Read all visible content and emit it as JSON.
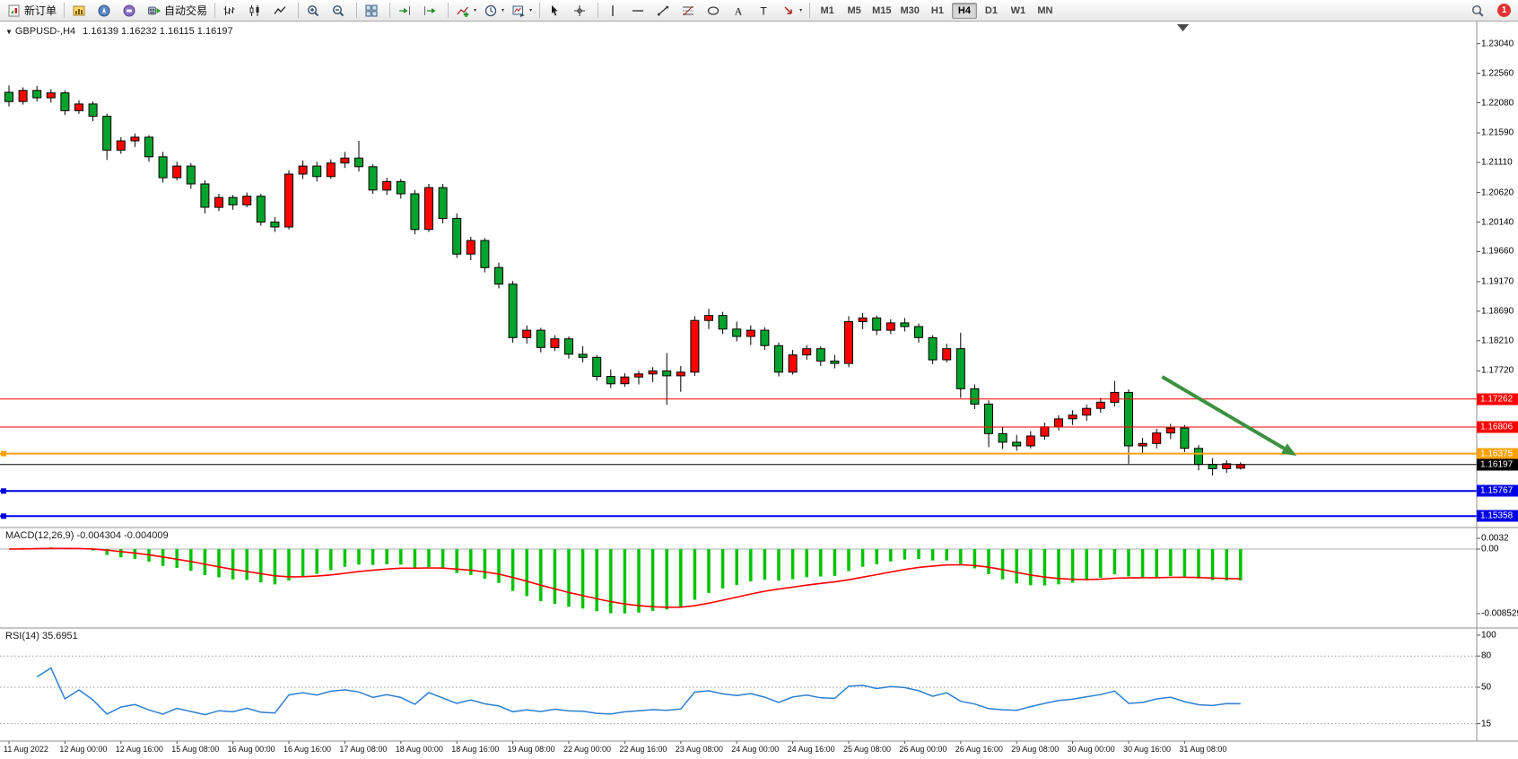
{
  "toolbar": {
    "new_order_label": "新订单",
    "autotrading_label": "自动交易",
    "notification_count": "1",
    "timeframes": [
      "M1",
      "M5",
      "M15",
      "M30",
      "H1",
      "H4",
      "D1",
      "W1",
      "MN"
    ],
    "active_timeframe": "H4",
    "groups": [
      {
        "items": [
          {
            "name": "new-order-button",
            "icon": "new-order",
            "label_key": "new_order_label"
          }
        ]
      },
      {
        "items": [
          {
            "name": "market-watch-button",
            "icon": "market-watch"
          },
          {
            "name": "navigator-button",
            "icon": "navigator"
          },
          {
            "name": "terminal-button",
            "icon": "terminal"
          },
          {
            "name": "autotrading-button",
            "icon": "autotrading",
            "label_key": "autotrading_label"
          }
        ]
      },
      {
        "items": [
          {
            "name": "bar-chart-button",
            "icon": "bar-chart"
          },
          {
            "name": "candlestick-chart-button",
            "icon": "candlestick-chart"
          },
          {
            "name": "line-chart-button",
            "icon": "line-chart"
          }
        ]
      },
      {
        "items": [
          {
            "name": "zoom-in-button",
            "icon": "zoom-in"
          },
          {
            "name": "zoom-out-button",
            "icon": "zoom-out"
          }
        ]
      },
      {
        "items": [
          {
            "name": "tile-windows-button",
            "icon": "tile-windows"
          }
        ]
      },
      {
        "items": [
          {
            "name": "auto-scroll-button",
            "icon": "auto-scroll"
          },
          {
            "name": "chart-shift-button",
            "icon": "chart-shift"
          }
        ]
      },
      {
        "items": [
          {
            "name": "indicators-button",
            "icon": "indicators",
            "caret": true
          },
          {
            "name": "periods-button",
            "icon": "periods",
            "caret": true
          },
          {
            "name": "templates-button",
            "icon": "templates",
            "caret": true
          }
        ]
      },
      {
        "items": [
          {
            "name": "cursor-button",
            "icon": "cursor"
          },
          {
            "name": "crosshair-button",
            "icon": "crosshair"
          }
        ]
      },
      {
        "items": [
          {
            "name": "vertical-line-button",
            "icon": "vertical-line"
          },
          {
            "name": "horizontal-line-button",
            "icon": "horizontal-line"
          },
          {
            "name": "trendline-button",
            "icon": "trendline"
          },
          {
            "name": "fibonacci-button",
            "icon": "fibonacci"
          },
          {
            "name": "shapes-button",
            "icon": "shapes"
          },
          {
            "name": "text-button",
            "icon": "text"
          },
          {
            "name": "label-button",
            "icon": "label"
          },
          {
            "name": "arrows-button",
            "icon": "arrows",
            "caret": true
          }
        ]
      }
    ]
  },
  "chart": {
    "symbol_label": "GBPUSD-,H4",
    "ohlc_text": "1.16139 1.16232 1.16115 1.16197"
  },
  "indicators": {
    "macd": {
      "label": "MACD(12,26,9) -0.004304 -0.004009",
      "fast": 12,
      "slow": 26,
      "signal": 9,
      "axis_labels": [
        "0.0032",
        "0.00",
        "-0.0085293"
      ]
    },
    "rsi": {
      "label": "RSI(14) 35.6951",
      "period": 14,
      "axis_labels": [
        "100",
        "80",
        "50",
        "15"
      ],
      "levels": [
        80,
        50,
        15
      ]
    }
  },
  "chart_data": {
    "type": "candlestick",
    "symbol": "GBPUSD",
    "timeframe": "H4",
    "current_bar": {
      "open": 1.16139,
      "high": 1.16232,
      "low": 1.16115,
      "close": 1.16197
    },
    "price_axis_labels": [
      "1.23040",
      "1.22560",
      "1.22080",
      "1.21590",
      "1.21110",
      "1.20620",
      "1.20140",
      "1.19660",
      "1.19170",
      "1.18690",
      "1.18210",
      "1.17720"
    ],
    "time_labels": [
      "11 Aug 2022",
      "12 Aug 00:00",
      "12 Aug 16:00",
      "15 Aug 08:00",
      "16 Aug 00:00",
      "16 Aug 16:00",
      "17 Aug 08:00",
      "18 Aug 00:00",
      "18 Aug 16:00",
      "19 Aug 08:00",
      "22 Aug 00:00",
      "22 Aug 16:00",
      "23 Aug 08:00",
      "24 Aug 00:00",
      "24 Aug 16:00",
      "25 Aug 08:00",
      "26 Aug 00:00",
      "26 Aug 16:00",
      "29 Aug 08:00",
      "30 Aug 00:00",
      "30 Aug 16:00",
      "31 Aug 08:00"
    ],
    "levels": [
      {
        "name": "resistance-line-1",
        "label": "1.17262",
        "price": 1.17262,
        "color": "#ff0000",
        "width": 1
      },
      {
        "name": "resistance-line-2",
        "label": "1.16806",
        "price": 1.16806,
        "color": "#ff0000",
        "width": 1
      },
      {
        "name": "pivot-line",
        "label": "1.16375",
        "price": 1.16375,
        "color": "#ffa200",
        "width": 2,
        "handle": true
      },
      {
        "name": "bid-price-line",
        "label": "1.16197",
        "price": 1.16197,
        "color": "#000000",
        "width": 1
      },
      {
        "name": "support-line-1",
        "label": "1.15767",
        "price": 1.15767,
        "color": "#0000e6",
        "width": 2,
        "handle": true
      },
      {
        "name": "support-line-2",
        "label": "1.15358",
        "price": 1.15358,
        "color": "#0000e6",
        "width": 2,
        "handle": true
      }
    ],
    "colors": {
      "bull": "#ff0000",
      "bear": "#00a32c",
      "outline": "#000000",
      "macd_hist": "#00c300",
      "macd_signal": "#ff0000",
      "rsi_line": "#2e7fd0"
    },
    "annotations": [
      {
        "type": "arrow",
        "color": "#3d9140",
        "from": {
          "bar": 82.4,
          "price": 1.17623
        },
        "to": {
          "bar": 92,
          "price": 1.1634
        }
      }
    ],
    "candles_ohlc": [
      [
        1.2225,
        1.2236,
        1.2202,
        1.221
      ],
      [
        1.221,
        1.2233,
        1.2205,
        1.2228
      ],
      [
        1.2228,
        1.2235,
        1.221,
        1.2216
      ],
      [
        1.2216,
        1.223,
        1.2208,
        1.2224
      ],
      [
        1.2224,
        1.2228,
        1.2188,
        1.2195
      ],
      [
        1.2195,
        1.2212,
        1.219,
        1.2206
      ],
      [
        1.2206,
        1.221,
        1.2178,
        1.2186
      ],
      [
        1.2186,
        1.219,
        1.2115,
        1.2131
      ],
      [
        1.2131,
        1.2152,
        1.2125,
        1.2146
      ],
      [
        1.2146,
        1.2158,
        1.2136,
        1.2152
      ],
      [
        1.2152,
        1.2155,
        1.2112,
        1.212
      ],
      [
        1.212,
        1.2128,
        1.2078,
        1.2086
      ],
      [
        1.2086,
        1.2112,
        1.2082,
        1.2105
      ],
      [
        1.2105,
        1.211,
        1.2068,
        1.2076
      ],
      [
        1.2076,
        1.2082,
        1.2028,
        1.2038
      ],
      [
        1.2038,
        1.206,
        1.2032,
        1.2054
      ],
      [
        1.2054,
        1.2058,
        1.2034,
        1.2042
      ],
      [
        1.2042,
        1.2062,
        1.2038,
        1.2056
      ],
      [
        1.2056,
        1.206,
        1.2008,
        1.2014
      ],
      [
        1.2014,
        1.2022,
        1.1998,
        1.2006
      ],
      [
        1.2006,
        1.2098,
        1.2002,
        1.2092
      ],
      [
        1.2092,
        1.2114,
        1.2084,
        1.2105
      ],
      [
        1.2105,
        1.2112,
        1.208,
        1.2088
      ],
      [
        1.2088,
        1.2116,
        1.2084,
        1.211
      ],
      [
        1.211,
        1.2128,
        1.2102,
        1.2118
      ],
      [
        1.2118,
        1.2146,
        1.2096,
        1.2104
      ],
      [
        1.2104,
        1.2108,
        1.206,
        1.2066
      ],
      [
        1.2066,
        1.2086,
        1.2058,
        1.208
      ],
      [
        1.208,
        1.2084,
        1.2052,
        1.206
      ],
      [
        1.206,
        1.2066,
        1.1994,
        1.2002
      ],
      [
        1.2002,
        1.2076,
        1.1998,
        1.207
      ],
      [
        1.207,
        1.2076,
        1.2012,
        1.202
      ],
      [
        1.202,
        1.2028,
        1.1956,
        1.1962
      ],
      [
        1.1962,
        1.199,
        1.1952,
        1.1984
      ],
      [
        1.1984,
        1.1988,
        1.1932,
        1.194
      ],
      [
        1.194,
        1.1948,
        1.1906,
        1.1913
      ],
      [
        1.1913,
        1.1918,
        1.1818,
        1.1826
      ],
      [
        1.1826,
        1.1846,
        1.1816,
        1.1838
      ],
      [
        1.1838,
        1.1842,
        1.1802,
        1.181
      ],
      [
        1.181,
        1.183,
        1.1804,
        1.1824
      ],
      [
        1.1824,
        1.1828,
        1.1792,
        1.1799
      ],
      [
        1.1799,
        1.1812,
        1.1786,
        1.1794
      ],
      [
        1.1794,
        1.1798,
        1.1756,
        1.1763
      ],
      [
        1.1763,
        1.1774,
        1.1744,
        1.1751
      ],
      [
        1.1751,
        1.1768,
        1.1746,
        1.1762
      ],
      [
        1.1762,
        1.1772,
        1.175,
        1.1767
      ],
      [
        1.1767,
        1.1778,
        1.1754,
        1.1772
      ],
      [
        1.1772,
        1.1801,
        1.1717,
        1.1764
      ],
      [
        1.1764,
        1.178,
        1.1738,
        1.177
      ],
      [
        1.177,
        1.1861,
        1.1764,
        1.1854
      ],
      [
        1.1854,
        1.1873,
        1.184,
        1.1862
      ],
      [
        1.1862,
        1.1868,
        1.1832,
        1.184
      ],
      [
        1.184,
        1.1852,
        1.182,
        1.1828
      ],
      [
        1.1828,
        1.1846,
        1.1814,
        1.1838
      ],
      [
        1.1838,
        1.1843,
        1.1806,
        1.1813
      ],
      [
        1.1813,
        1.1818,
        1.1763,
        1.177
      ],
      [
        1.177,
        1.1806,
        1.1766,
        1.1798
      ],
      [
        1.1798,
        1.1814,
        1.179,
        1.1808
      ],
      [
        1.1808,
        1.1812,
        1.178,
        1.1788
      ],
      [
        1.1788,
        1.1798,
        1.1776,
        1.1784
      ],
      [
        1.1784,
        1.1861,
        1.1778,
        1.1852
      ],
      [
        1.1852,
        1.1866,
        1.184,
        1.1858
      ],
      [
        1.1858,
        1.1862,
        1.183,
        1.1838
      ],
      [
        1.1838,
        1.1856,
        1.1832,
        1.185
      ],
      [
        1.185,
        1.1858,
        1.1836,
        1.1844
      ],
      [
        1.1844,
        1.1849,
        1.1818,
        1.1826
      ],
      [
        1.1826,
        1.183,
        1.1783,
        1.179
      ],
      [
        1.179,
        1.1816,
        1.1786,
        1.1808
      ],
      [
        1.1808,
        1.1834,
        1.1728,
        1.1743
      ],
      [
        1.1743,
        1.175,
        1.171,
        1.1718
      ],
      [
        1.1718,
        1.1724,
        1.1648,
        1.167
      ],
      [
        1.167,
        1.168,
        1.1645,
        1.1656
      ],
      [
        1.1656,
        1.1668,
        1.1642,
        1.165
      ],
      [
        1.165,
        1.1674,
        1.1646,
        1.1666
      ],
      [
        1.1666,
        1.1688,
        1.166,
        1.1681
      ],
      [
        1.1681,
        1.17,
        1.1675,
        1.1694
      ],
      [
        1.1694,
        1.1708,
        1.1684,
        1.17
      ],
      [
        1.17,
        1.1717,
        1.1691,
        1.1711
      ],
      [
        1.1711,
        1.1728,
        1.1704,
        1.1721
      ],
      [
        1.1721,
        1.1756,
        1.1714,
        1.1737
      ],
      [
        1.1737,
        1.1742,
        1.1621,
        1.165
      ],
      [
        1.165,
        1.1663,
        1.1638,
        1.1654
      ],
      [
        1.1654,
        1.1678,
        1.1646,
        1.1671
      ],
      [
        1.1671,
        1.1686,
        1.1661,
        1.1679
      ],
      [
        1.1679,
        1.1684,
        1.164,
        1.1646
      ],
      [
        1.1646,
        1.1651,
        1.161,
        1.162
      ],
      [
        1.162,
        1.163,
        1.1602,
        1.1613
      ],
      [
        1.1613,
        1.1627,
        1.1606,
        1.1621
      ],
      [
        1.16139,
        1.16232,
        1.16115,
        1.16197
      ]
    ]
  }
}
